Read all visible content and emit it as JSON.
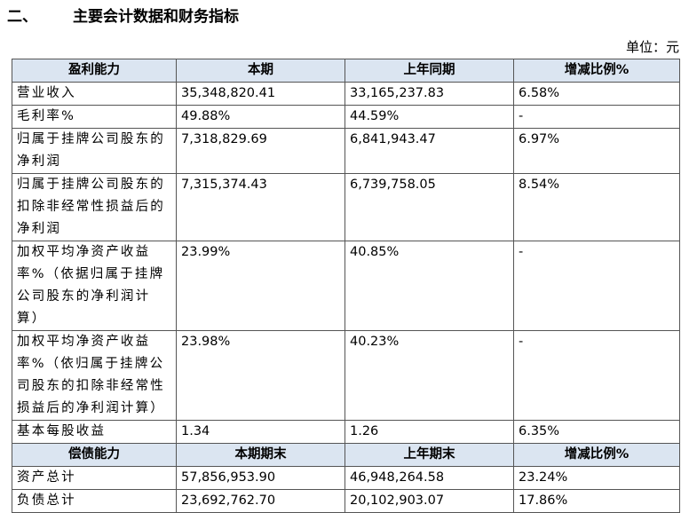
{
  "heading": {
    "number": "二、",
    "title": "主要会计数据和财务指标"
  },
  "unit": "单位：元",
  "profitability": {
    "header": [
      "盈利能力",
      "本期",
      "上年同期",
      "增减比例%"
    ],
    "rows": [
      [
        "营业收入",
        "35,348,820.41",
        "33,165,237.83",
        "6.58%"
      ],
      [
        "毛利率%",
        "49.88%",
        "44.59%",
        "-"
      ],
      [
        "归属于挂牌公司股东的净利润",
        "7,318,829.69",
        "6,841,943.47",
        "6.97%"
      ],
      [
        "归属于挂牌公司股东的扣除非经常性损益后的净利润",
        "7,315,374.43",
        "6,739,758.05",
        "8.54%"
      ],
      [
        "加权平均净资产收益率%（依据归属于挂牌公司股东的净利润计算）",
        "23.99%",
        "40.85%",
        "-"
      ],
      [
        "加权平均净资产收益率%（依归属于挂牌公司股东的扣除非经常性损益后的净利润计算）",
        "23.98%",
        "40.23%",
        "-"
      ],
      [
        "基本每股收益",
        "1.34",
        "1.26",
        "6.35%"
      ]
    ]
  },
  "solvency": {
    "header": [
      "偿债能力",
      "本期期末",
      "上年期末",
      "增减比例%"
    ],
    "rows": [
      [
        "资产总计",
        "57,856,953.90",
        "46,948,264.58",
        "23.24%"
      ],
      [
        "负债总计",
        "23,692,762.70",
        "20,102,903.07",
        "17.86%"
      ]
    ]
  }
}
